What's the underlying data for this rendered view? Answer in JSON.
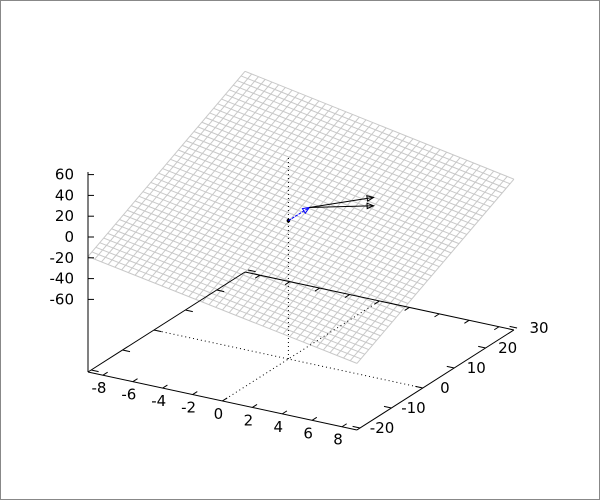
{
  "chart_data": {
    "type": "surface3d",
    "title": "",
    "xlabel": "",
    "ylabel": "",
    "zlabel": "",
    "xlim": [
      -9,
      9
    ],
    "ylim": [
      -21,
      29
    ],
    "zlim": [
      -60,
      60
    ],
    "x_ticks": [
      "-8",
      "-6",
      "-4",
      "-2",
      "0",
      "2",
      "4",
      "6",
      "8"
    ],
    "y_ticks": [
      "-20",
      "-10",
      "0",
      "10",
      "20",
      "30"
    ],
    "z_ticks": [
      "60",
      "40",
      "20",
      "0",
      "-20",
      "-40",
      "-60"
    ],
    "surface": {
      "kind": "plane grid",
      "corners": [
        {
          "x": -9,
          "y": -21,
          "z": -19
        },
        {
          "x": -9,
          "y": 29,
          "z": 63
        },
        {
          "x": 9,
          "y": 29,
          "z": 15
        },
        {
          "x": 9,
          "y": -21,
          "z": -66
        }
      ],
      "color": "#c8c8c8"
    },
    "point": {
      "x": 0,
      "y": 0,
      "z": 3
    },
    "arrows": [
      {
        "from": {
          "x": 0,
          "y": 0,
          "z": 3
        },
        "to": {
          "x": 1.4,
          "y": 0,
          "z": 20
        },
        "color": "#0000ff"
      },
      {
        "from": {
          "x": 1.4,
          "y": 0,
          "z": 20
        },
        "to": {
          "x": 5.7,
          "y": 0,
          "z": 43
        },
        "color": "#000000"
      },
      {
        "from": {
          "x": 1.4,
          "y": 0,
          "z": 20
        },
        "to": {
          "x": 5.7,
          "y": 0,
          "z": 35
        },
        "color": "#000000"
      }
    ],
    "grid": false
  }
}
